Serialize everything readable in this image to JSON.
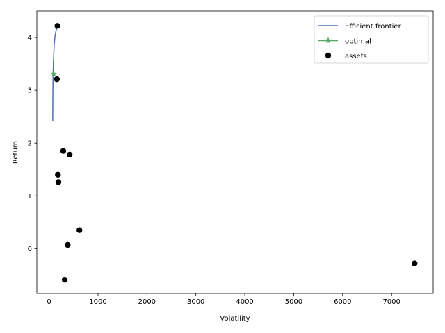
{
  "chart_data": {
    "type": "scatter",
    "title": "",
    "xlabel": "Volatility",
    "ylabel": "Return",
    "xlim": [
      -250,
      7850
    ],
    "ylim": [
      -0.85,
      4.5
    ],
    "xticks": [
      0,
      1000,
      2000,
      3000,
      4000,
      5000,
      6000,
      7000
    ],
    "yticks": [
      0,
      1,
      2,
      3,
      4
    ],
    "grid": false,
    "legend_position": "top-right",
    "series": [
      {
        "name": "Efficient frontier",
        "kind": "line",
        "color": "#4c72b0",
        "x": [
          75,
          76,
          78,
          81,
          85,
          90,
          96,
          104,
          113,
          124,
          138,
          155,
          175
        ],
        "y": [
          2.42,
          2.7,
          3.0,
          3.2,
          3.4,
          3.55,
          3.7,
          3.85,
          3.95,
          4.04,
          4.11,
          4.17,
          4.22
        ]
      },
      {
        "name": "optimal",
        "kind": "line-marker",
        "marker": "star",
        "color": "#55a868",
        "x": [
          95
        ],
        "y": [
          3.31
        ]
      },
      {
        "name": "assets",
        "kind": "scatter",
        "color": "#000000",
        "x": [
          170,
          160,
          290,
          420,
          180,
          190,
          620,
          380,
          320,
          7470
        ],
        "y": [
          4.22,
          3.21,
          1.85,
          1.78,
          1.4,
          1.26,
          0.35,
          0.07,
          -0.59,
          -0.28
        ]
      }
    ]
  }
}
